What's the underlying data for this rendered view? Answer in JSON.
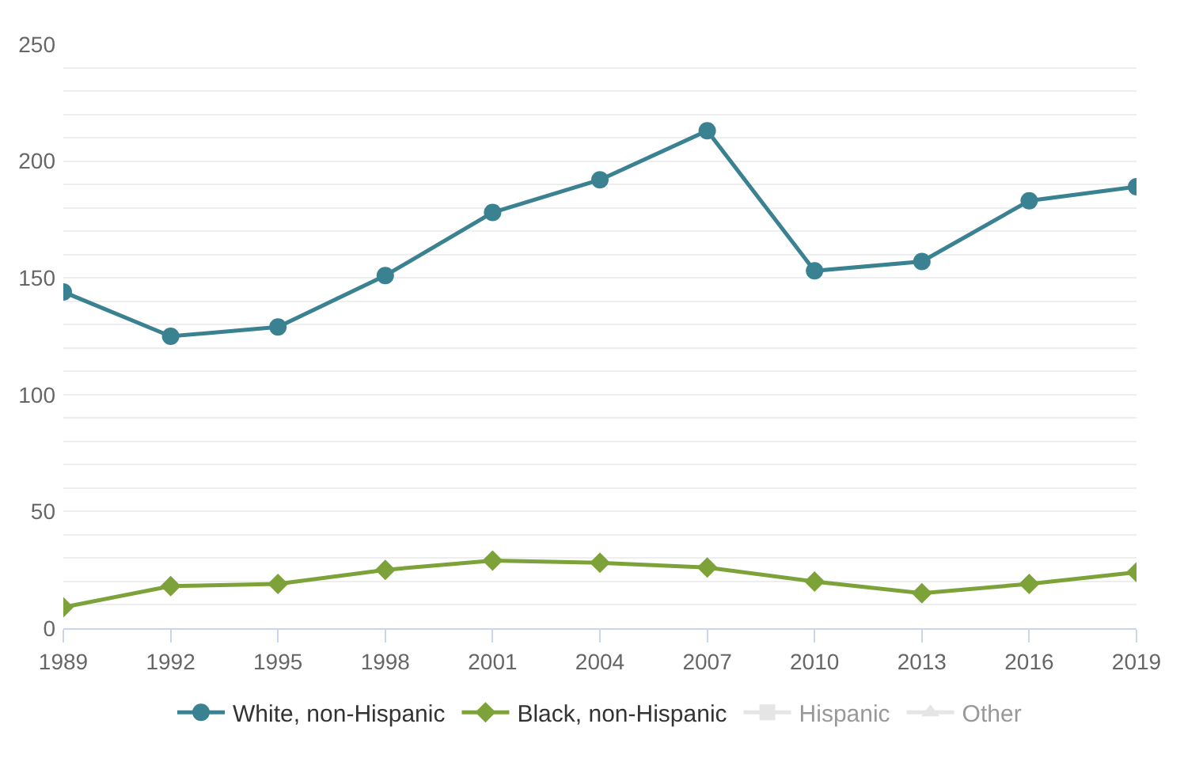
{
  "chart_data": {
    "type": "line",
    "x": [
      1989,
      1992,
      1995,
      1998,
      2001,
      2004,
      2007,
      2010,
      2013,
      2016,
      2019
    ],
    "series": [
      {
        "name": "White, non-Hispanic",
        "color": "#3a8291",
        "marker": "circle",
        "values": [
          144,
          125,
          129,
          151,
          178,
          192,
          213,
          153,
          157,
          183,
          189
        ]
      },
      {
        "name": "Black, non-Hispanic",
        "color": "#7ea23a",
        "marker": "diamond",
        "values": [
          9,
          18,
          19,
          25,
          29,
          28,
          26,
          20,
          15,
          19,
          24
        ]
      },
      {
        "name": "Hispanic",
        "color": "#cccccc",
        "marker": "square",
        "values": [
          null,
          null,
          null,
          null,
          null,
          null,
          null,
          null,
          null,
          null,
          null
        ]
      },
      {
        "name": "Other",
        "color": "#cccccc",
        "marker": "triangle",
        "values": [
          null,
          null,
          null,
          null,
          null,
          null,
          null,
          null,
          null,
          null,
          null
        ]
      }
    ],
    "xlim": [
      1989,
      2019
    ],
    "xticks": [
      1989,
      1992,
      1995,
      1998,
      2001,
      2004,
      2007,
      2010,
      2013,
      2016,
      2019
    ],
    "ylim": [
      0,
      250
    ],
    "yticks": [
      0,
      {
        "value": 10,
        "label": null
      },
      {
        "value": 20,
        "label": null
      },
      {
        "value": 30,
        "label": null
      },
      {
        "value": 40,
        "label": null
      },
      50,
      {
        "value": 60,
        "label": null
      },
      {
        "value": 70,
        "label": null
      },
      {
        "value": 80,
        "label": null
      },
      {
        "value": 90,
        "label": null
      },
      100,
      {
        "value": 110,
        "label": null
      },
      {
        "value": 120,
        "label": null
      },
      {
        "value": 130,
        "label": null
      },
      {
        "value": 140,
        "label": null
      },
      150,
      {
        "value": 160,
        "label": null
      },
      {
        "value": 170,
        "label": null
      },
      {
        "value": 180,
        "label": null
      },
      {
        "value": 190,
        "label": null
      },
      200,
      {
        "value": 210,
        "label": null
      },
      {
        "value": 220,
        "label": null
      },
      {
        "value": 230,
        "label": null
      },
      {
        "value": 240,
        "label": null
      },
      250
    ],
    "grid": "y",
    "legend": "bottom",
    "line_style": "solid"
  }
}
